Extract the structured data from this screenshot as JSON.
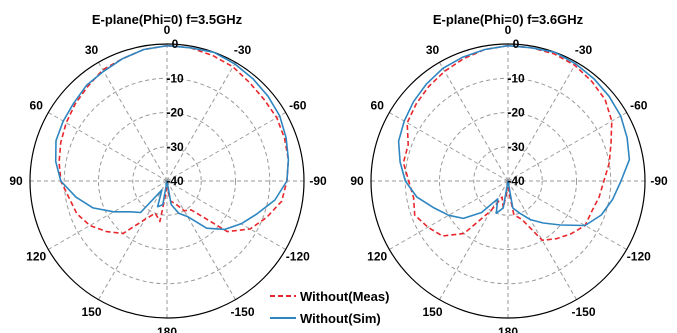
{
  "chart_data": [
    {
      "type": "polar-line",
      "title": "E-plane(Phi=0) f=3.5GHz",
      "angle_labels": [
        "0",
        "-30",
        "-60",
        "-90",
        "-120",
        "-150",
        "180",
        "150",
        "120",
        "90",
        "60",
        "30"
      ],
      "radial_labels": [
        "0",
        "-10",
        "-20",
        "-30",
        "-40"
      ],
      "rlim": [
        -40,
        0
      ],
      "grid": true,
      "series": [
        {
          "name": "Without(Meas)",
          "color": "#e8262b",
          "style": "dashed",
          "theta": [
            0,
            10,
            20,
            30,
            40,
            50,
            60,
            70,
            80,
            90,
            100,
            110,
            120,
            130,
            140,
            150,
            160,
            170,
            180,
            190,
            200,
            210,
            220,
            230,
            240,
            250,
            260,
            270,
            280,
            290,
            300,
            310,
            320,
            330,
            340,
            350
          ],
          "values": [
            -0.5,
            -1,
            -2,
            -2.5,
            -4,
            -5,
            -6,
            -7,
            -8,
            -9,
            -11,
            -12,
            -14,
            -17,
            -20,
            -27,
            -30,
            -28,
            -38,
            -34,
            -33,
            -30,
            -29,
            -17,
            -12,
            -9,
            -6,
            -5,
            -4,
            -3.5,
            -3,
            -3,
            -2.5,
            -1.5,
            -1,
            -0.5
          ]
        },
        {
          "name": "Without(Sim)",
          "color": "#2e86c1",
          "style": "solid",
          "theta": [
            0,
            10,
            20,
            30,
            40,
            50,
            60,
            70,
            80,
            90,
            100,
            110,
            120,
            130,
            140,
            150,
            160,
            170,
            180,
            190,
            200,
            210,
            220,
            230,
            240,
            250,
            260,
            270,
            280,
            290,
            300,
            310,
            320,
            330,
            340,
            350
          ],
          "values": [
            -0.5,
            -1,
            -2,
            -3,
            -3.5,
            -4.5,
            -5,
            -5.5,
            -7,
            -9,
            -13,
            -17,
            -22,
            -26,
            -28,
            -37,
            -32,
            -33,
            -40,
            -33,
            -30,
            -28,
            -22,
            -18,
            -15,
            -12,
            -8,
            -5,
            -4,
            -3,
            -2,
            -1.5,
            -1,
            -0.5,
            0,
            -0.5
          ]
        }
      ]
    },
    {
      "type": "polar-line",
      "title": "E-plane(Phi=0) f=3.6GHz",
      "angle_labels": [
        "0",
        "-30",
        "-60",
        "-90",
        "-120",
        "-150",
        "180",
        "150",
        "120",
        "90",
        "60",
        "30"
      ],
      "radial_labels": [
        "0",
        "-10",
        "-20",
        "-30",
        "-40"
      ],
      "rlim": [
        -40,
        0
      ],
      "grid": true,
      "series": [
        {
          "name": "Without(Meas)",
          "color": "#e8262b",
          "style": "dashed",
          "theta": [
            0,
            10,
            20,
            30,
            40,
            50,
            60,
            70,
            80,
            90,
            100,
            110,
            120,
            130,
            140,
            150,
            160,
            170,
            180,
            190,
            200,
            210,
            220,
            230,
            240,
            250,
            260,
            270,
            280,
            290,
            300,
            310,
            320,
            330,
            340,
            350
          ],
          "values": [
            -0.5,
            -1,
            -2,
            -3,
            -4,
            -5,
            -6,
            -9,
            -9,
            -11,
            -12,
            -11,
            -13,
            -15,
            -20,
            -30,
            -35,
            -32,
            -38,
            -30,
            -28,
            -20,
            -18,
            -16,
            -14,
            -14,
            -13,
            -12,
            -10,
            -8,
            -5,
            -3,
            -2,
            -1,
            -0.5,
            -0.5
          ]
        },
        {
          "name": "Without(Sim)",
          "color": "#2e86c1",
          "style": "solid",
          "theta": [
            0,
            10,
            20,
            30,
            40,
            50,
            60,
            70,
            80,
            90,
            100,
            110,
            120,
            130,
            140,
            150,
            160,
            170,
            180,
            190,
            200,
            210,
            220,
            230,
            240,
            250,
            260,
            270,
            280,
            290,
            300,
            310,
            320,
            330,
            340,
            350
          ],
          "values": [
            -0.5,
            -1,
            -1.5,
            -2,
            -3,
            -4,
            -5,
            -6,
            -8,
            -10,
            -13,
            -17,
            -20,
            -23,
            -28,
            -34,
            -30,
            -32,
            -40,
            -32,
            -30,
            -27,
            -24,
            -20,
            -14,
            -11,
            -9,
            -7,
            -4,
            -3,
            -2,
            -1.5,
            -1,
            -0.5,
            0,
            -0.5
          ]
        }
      ]
    }
  ],
  "legend": {
    "meas_label": "Without(Meas)",
    "sim_label": "Without(Sim)"
  },
  "colors": {
    "meas": "#e8262b",
    "sim": "#2e86c1",
    "grid": "#9a9a9a",
    "axis": "#000000"
  }
}
